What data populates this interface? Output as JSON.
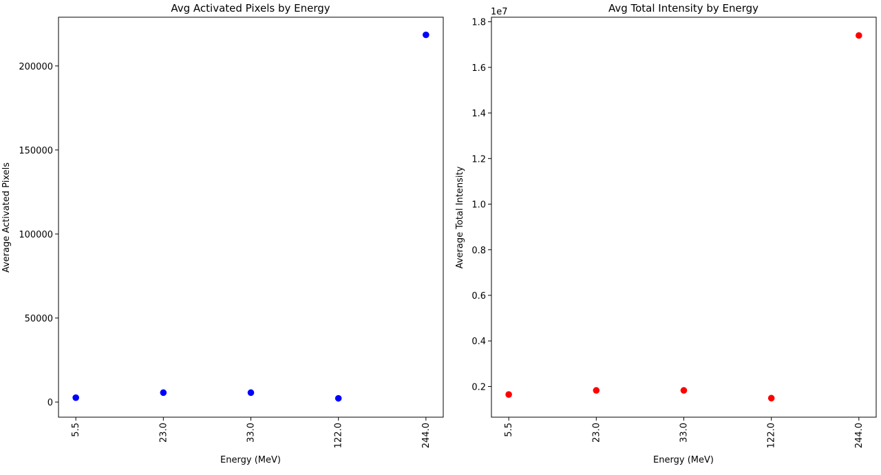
{
  "chart_data": [
    {
      "type": "scatter",
      "title": "Avg Activated Pixels by Energy",
      "xlabel": "Energy (MeV)",
      "ylabel": "Average Activated Pixels",
      "categories": [
        "5.5",
        "23.0",
        "33.0",
        "122.0",
        "244.0"
      ],
      "values": [
        2600,
        5600,
        5600,
        2200,
        218500
      ],
      "ylim": [
        -9000,
        229000
      ],
      "yticks": [
        0,
        50000,
        100000,
        150000,
        200000
      ],
      "ytick_labels": [
        "0",
        "50000",
        "100000",
        "150000",
        "200000"
      ],
      "grid": false,
      "color": "#0000ff"
    },
    {
      "type": "scatter",
      "title": "Avg Total Intensity by Energy",
      "xlabel": "Energy (MeV)",
      "ylabel": "Average Total Intensity",
      "categories": [
        "5.5",
        "23.0",
        "33.0",
        "122.0",
        "244.0"
      ],
      "values": [
        1650000,
        1830000,
        1830000,
        1490000,
        17400000
      ],
      "ylim": [
        655000,
        18200000
      ],
      "yticks": [
        2000000,
        4000000,
        6000000,
        8000000,
        10000000,
        12000000,
        14000000,
        16000000,
        18000000
      ],
      "ytick_labels": [
        "0.2",
        "0.4",
        "0.6",
        "0.8",
        "1.0",
        "1.2",
        "1.4",
        "1.6",
        "1.8"
      ],
      "offset_label": "1e7",
      "grid": false,
      "color": "#ff0000"
    }
  ]
}
